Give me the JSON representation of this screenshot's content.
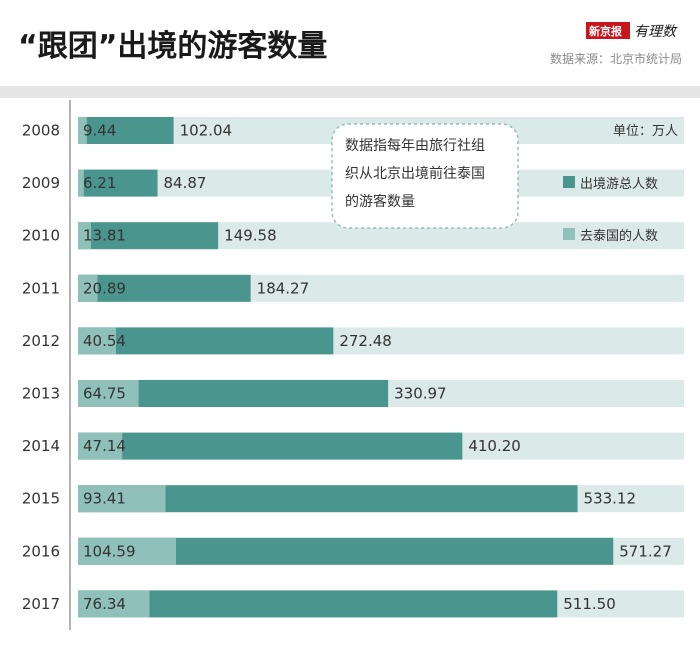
{
  "header": {
    "title": "“跟团”出境的游客数量",
    "source": "数据来源：北京市统计局",
    "brand_box": "新京报",
    "brand_text": "有理数"
  },
  "annotation": {
    "unit": "单位：万人",
    "note_lines": [
      "数据指每年由旅行社组",
      "织从北京出境前往泰国",
      "的游客数量"
    ]
  },
  "colors": {
    "total": "#4a958d",
    "thailand": "#8fc0b9",
    "track": "#dbeae8",
    "header_band": "#e5e5e5"
  },
  "chart_data": {
    "type": "bar",
    "orientation": "horizontal",
    "categories": [
      "2008",
      "2009",
      "2010",
      "2011",
      "2012",
      "2013",
      "2014",
      "2015",
      "2016",
      "2017"
    ],
    "series": [
      {
        "name": "出境游总人数",
        "values": [
          102.04,
          84.87,
          149.58,
          184.27,
          272.48,
          330.97,
          410.2,
          533.12,
          571.27,
          511.5
        ],
        "labels": [
          "102.04",
          "84.87",
          "149.58",
          "184.27",
          "272.48",
          "330.97",
          "410.20",
          "533.12",
          "571.27",
          "511.50"
        ]
      },
      {
        "name": "去泰国的人数",
        "values": [
          9.44,
          6.21,
          13.81,
          20.89,
          40.54,
          64.75,
          47.14,
          93.41,
          104.59,
          76.34
        ],
        "labels": [
          "9.44",
          "6.21",
          "13.81",
          "20.89",
          "40.54",
          "64.75",
          "47.14",
          "93.41",
          "104.59",
          "76.34"
        ]
      }
    ],
    "title": "“跟团”出境的游客数量",
    "xlim": [
      0,
      600
    ],
    "legend": {
      "position": "top-right",
      "entries": [
        "出境游总人数",
        "去泰国的人数"
      ]
    }
  }
}
